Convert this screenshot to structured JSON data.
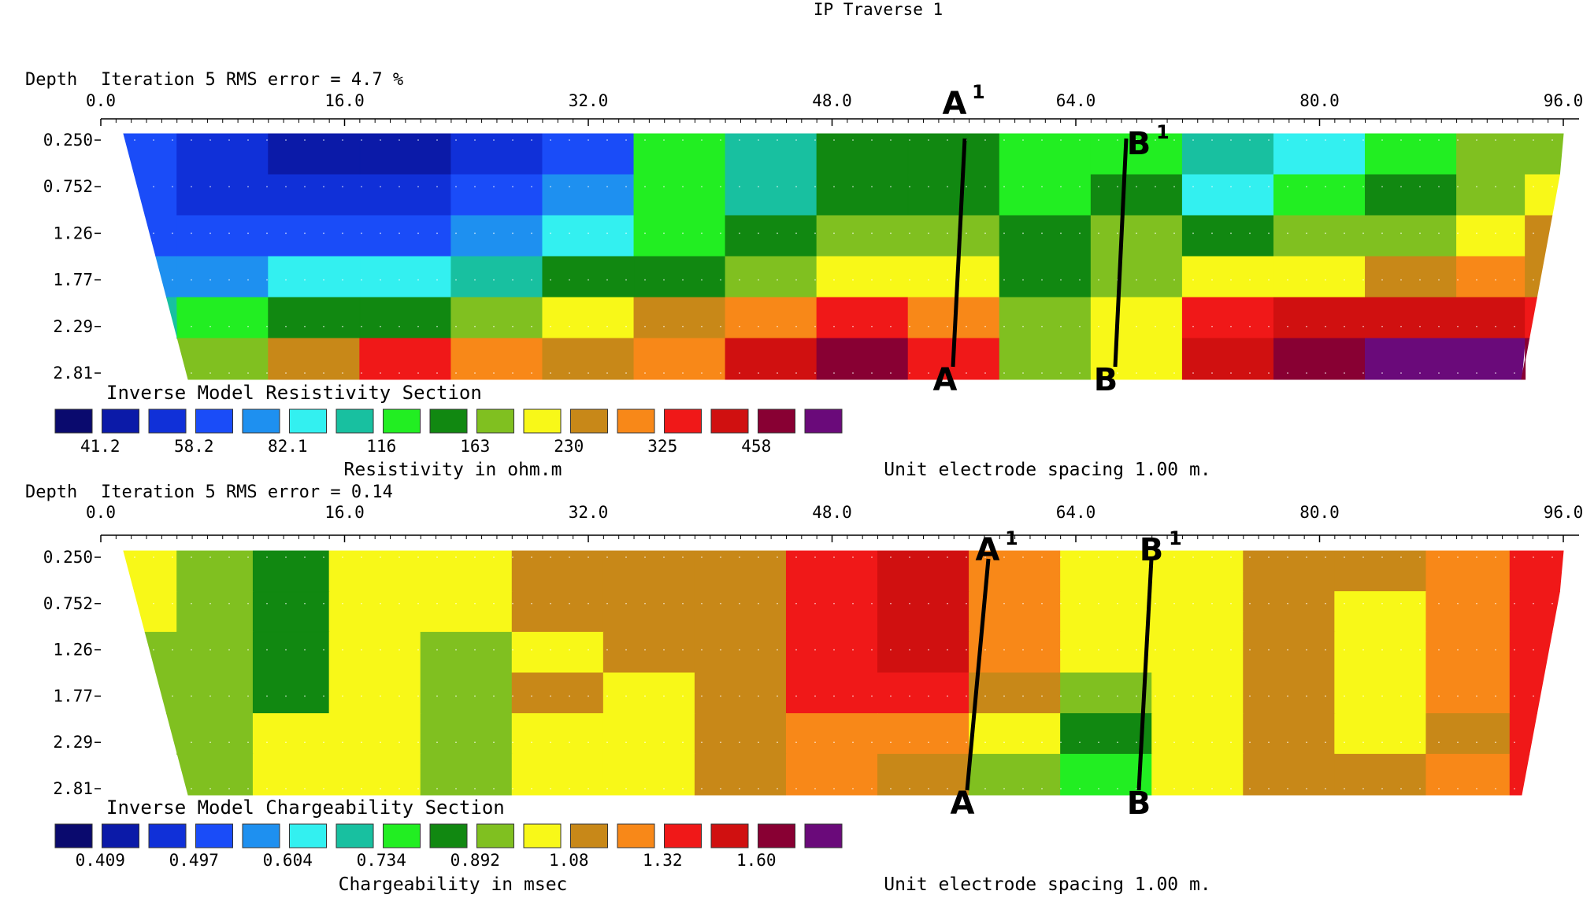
{
  "title": "IP Traverse 1",
  "x_ticks": [
    "0.0",
    "16.0",
    "32.0",
    "48.0",
    "64.0",
    "80.0",
    "96.0"
  ],
  "depth_ticks": [
    "0.250",
    "0.752",
    "1.26",
    "1.77",
    "2.29",
    "2.81"
  ],
  "spacing_note": "Unit electrode spacing 1.00 m.",
  "colors": {
    "scale": [
      "#0a0a6e",
      "#0b1aa8",
      "#1030d8",
      "#1a4cf8",
      "#1e90f0",
      "#33f0f0",
      "#18c0a0",
      "#22ee22",
      "#118811",
      "#80c020",
      "#f8f818",
      "#c88818",
      "#f88818",
      "#f01818",
      "#d01010",
      "#880033",
      "#6a0a7a"
    ]
  },
  "panels": [
    {
      "depth_label": "Depth",
      "iteration_text": "Iteration 5 RMS error = 4.7 %",
      "section_title": "Inverse Model Resistivity Section",
      "legend_values": [
        "41.2",
        "58.2",
        "82.1",
        "116",
        "163",
        "230",
        "325",
        "458"
      ],
      "unit_label": "Resistivity in ohm.m",
      "markers": [
        {
          "top": "A",
          "top_sup": "1",
          "bottom": "A"
        },
        {
          "top": "B",
          "top_sup": "1",
          "bottom": "B"
        }
      ]
    },
    {
      "depth_label": "Depth",
      "iteration_text": "Iteration 5 RMS error = 0.14",
      "section_title": "Inverse Model Chargeability Section",
      "legend_values": [
        "0.409",
        "0.497",
        "0.604",
        "0.734",
        "0.892",
        "1.08",
        "1.32",
        "1.60"
      ],
      "unit_label": "Chargeability in msec",
      "markers": [
        {
          "top": "A",
          "top_sup": "1",
          "bottom": "A"
        },
        {
          "top": "B",
          "top_sup": "1",
          "bottom": "B"
        }
      ]
    }
  ],
  "chart_data": [
    {
      "type": "heatmap",
      "title": "Inverse Model Resistivity Section",
      "xlabel": "",
      "ylabel": "Depth",
      "xlim": [
        0,
        96
      ],
      "depths": [
        0.25,
        0.752,
        1.26,
        1.77,
        2.29,
        2.81
      ],
      "x": [
        2,
        8,
        14,
        20,
        26,
        32,
        38,
        44,
        50,
        56,
        62,
        68,
        74,
        80,
        86,
        92,
        95
      ],
      "values": [
        [
          3,
          2,
          1,
          1,
          2,
          3,
          7,
          6,
          8,
          8,
          7,
          7,
          6,
          5,
          7,
          9,
          9
        ],
        [
          3,
          2,
          2,
          2,
          3,
          4,
          7,
          6,
          8,
          8,
          7,
          8,
          5,
          7,
          8,
          9,
          10
        ],
        [
          3,
          3,
          3,
          3,
          4,
          5,
          7,
          8,
          9,
          9,
          8,
          9,
          8,
          9,
          9,
          10,
          11
        ],
        [
          4,
          4,
          5,
          5,
          6,
          8,
          8,
          9,
          10,
          10,
          8,
          9,
          10,
          10,
          11,
          12,
          11
        ],
        [
          6,
          7,
          8,
          8,
          9,
          10,
          11,
          12,
          13,
          12,
          9,
          10,
          13,
          14,
          14,
          14,
          13
        ],
        [
          7,
          9,
          11,
          13,
          12,
          11,
          12,
          14,
          15,
          13,
          9,
          10,
          14,
          15,
          16,
          16,
          15
        ]
      ],
      "legend_values": [
        "41.2",
        "58.2",
        "82.1",
        "116",
        "163",
        "230",
        "325",
        "458"
      ],
      "unit": "Resistivity in ohm.m"
    },
    {
      "type": "heatmap",
      "title": "Inverse Model Chargeability Section",
      "xlabel": "",
      "ylabel": "Depth",
      "xlim": [
        0,
        96
      ],
      "depths": [
        0.25,
        0.752,
        1.26,
        1.77,
        2.29,
        2.81
      ],
      "x": [
        2,
        8,
        12,
        18,
        24,
        30,
        36,
        42,
        48,
        54,
        60,
        66,
        72,
        78,
        84,
        90,
        95
      ],
      "values": [
        [
          10,
          9,
          8,
          10,
          10,
          11,
          11,
          11,
          13,
          14,
          12,
          10,
          10,
          11,
          11,
          12,
          13
        ],
        [
          10,
          9,
          8,
          10,
          10,
          11,
          11,
          11,
          13,
          14,
          12,
          10,
          10,
          11,
          10,
          12,
          13
        ],
        [
          9,
          9,
          8,
          10,
          9,
          10,
          11,
          11,
          13,
          14,
          12,
          10,
          10,
          11,
          10,
          12,
          13
        ],
        [
          9,
          9,
          8,
          10,
          9,
          11,
          10,
          11,
          13,
          13,
          11,
          9,
          10,
          11,
          10,
          12,
          13
        ],
        [
          9,
          9,
          10,
          10,
          9,
          10,
          10,
          11,
          12,
          12,
          10,
          8,
          10,
          11,
          10,
          11,
          13
        ],
        [
          8,
          9,
          10,
          10,
          9,
          10,
          10,
          11,
          12,
          11,
          9,
          7,
          10,
          11,
          11,
          12,
          13
        ]
      ],
      "legend_values": [
        "0.409",
        "0.497",
        "0.604",
        "0.734",
        "0.892",
        "1.08",
        "1.32",
        "1.60"
      ],
      "unit": "Chargeability in msec"
    }
  ]
}
